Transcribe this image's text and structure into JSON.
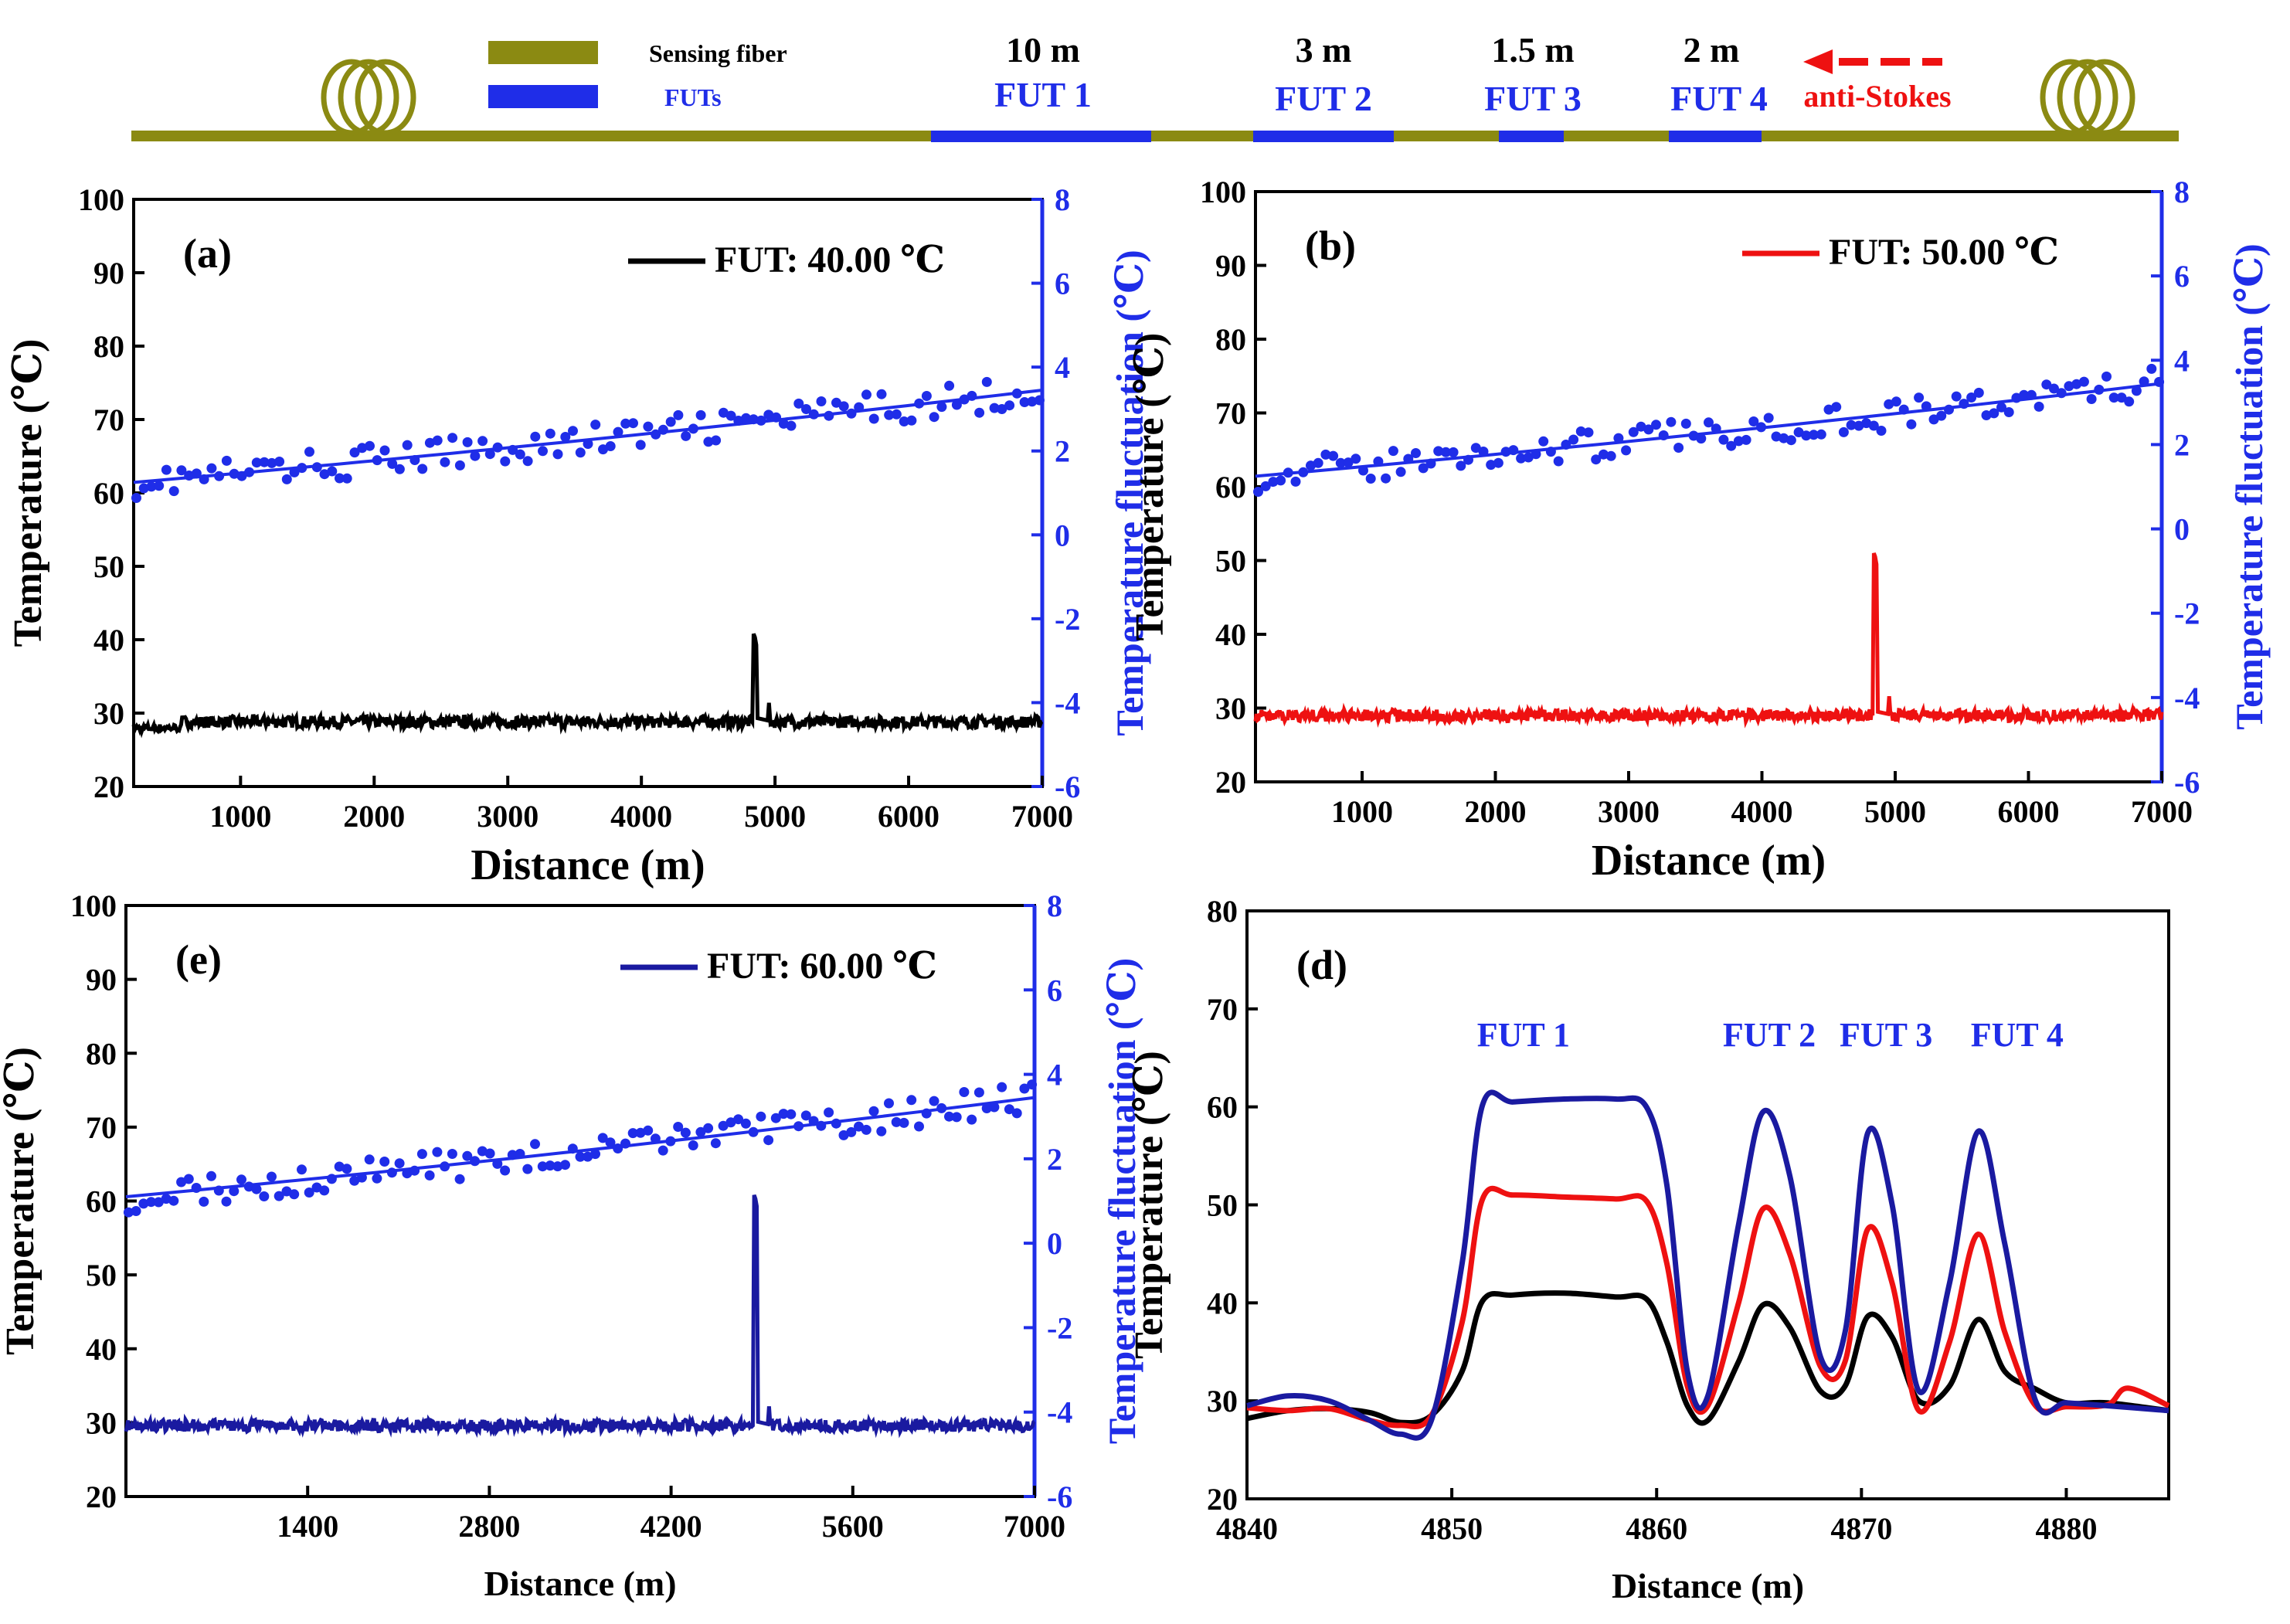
{
  "schematic": {
    "legend": [
      {
        "label": "Sensing fiber",
        "color": "#8b8a12"
      },
      {
        "label": "FUTs",
        "color": "#1f2de8"
      }
    ],
    "segments": [
      {
        "length": "10 m",
        "name": "FUT 1"
      },
      {
        "length": "3 m",
        "name": "FUT 2"
      },
      {
        "length": "1.5 m",
        "name": "FUT 3"
      },
      {
        "length": "2 m",
        "name": "FUT 4"
      }
    ],
    "direction_label": "anti-Stokes",
    "colors": {
      "fiber": "#8b8a12",
      "fut": "#1f2de8",
      "arrow": "#ee1111"
    }
  },
  "chart_data": [
    {
      "id": "a",
      "type": "line",
      "panel_label": "(a)",
      "legend": "FUT: 40.00 ℃",
      "trace_color": "#000000",
      "xlabel": "Distance (m)",
      "ylabel": "Temperature (℃)",
      "y2label": "Temperature fluctuation (℃)",
      "xlim": [
        200,
        7000
      ],
      "xticks": [
        1000,
        2000,
        3000,
        4000,
        5000,
        6000,
        7000
      ],
      "ylim": [
        20,
        100
      ],
      "yticks": [
        20,
        30,
        40,
        50,
        60,
        70,
        80,
        90,
        100
      ],
      "y2lim": [
        -6,
        8
      ],
      "y2ticks": [
        -6,
        -4,
        -2,
        0,
        2,
        4,
        6,
        8
      ],
      "baseline": 28.8,
      "peak": {
        "x": 4855,
        "y": 40.8
      },
      "fluctuation_fit": {
        "x": [
          200,
          7000
        ],
        "y": [
          1.25,
          3.45
        ]
      }
    },
    {
      "id": "b",
      "type": "line",
      "panel_label": "(b)",
      "legend": "FUT: 50.00 ℃",
      "trace_color": "#ee1111",
      "xlabel": "Distance (m)",
      "ylabel": "Temperature (℃)",
      "y2label": "Temperature fluctuation (℃)",
      "xlim": [
        200,
        7000
      ],
      "xticks": [
        1000,
        2000,
        3000,
        4000,
        5000,
        6000,
        7000
      ],
      "ylim": [
        20,
        100
      ],
      "yticks": [
        20,
        30,
        40,
        50,
        60,
        70,
        80,
        90,
        100
      ],
      "y2lim": [
        -6,
        8
      ],
      "y2ticks": [
        -6,
        -4,
        -2,
        0,
        2,
        4,
        6,
        8
      ],
      "baseline": 29.0,
      "peak": {
        "x": 4855,
        "y": 51.0
      },
      "fluctuation_fit": {
        "x": [
          200,
          7000
        ],
        "y": [
          1.25,
          3.45
        ]
      }
    },
    {
      "id": "e",
      "type": "line",
      "panel_label": "(e)",
      "legend": "FUT: 60.00 ℃",
      "trace_color": "#1a1aa0",
      "xlabel": "Distance (m)",
      "ylabel": "Temperature (℃)",
      "y2label": "Temperature fluctuation (℃)",
      "xlim": [
        0,
        7000
      ],
      "xticks": [
        1400,
        2800,
        4200,
        5600,
        7000
      ],
      "ylim": [
        20,
        100
      ],
      "yticks": [
        20,
        30,
        40,
        50,
        60,
        70,
        80,
        90,
        100
      ],
      "y2lim": [
        -6,
        8
      ],
      "y2ticks": [
        -6,
        -4,
        -2,
        0,
        2,
        4,
        6,
        8
      ],
      "baseline": 29.6,
      "peak": {
        "x": 4855,
        "y": 60.8
      },
      "fluctuation_fit": {
        "x": [
          0,
          7000
        ],
        "y": [
          1.1,
          3.45
        ]
      }
    },
    {
      "id": "d",
      "type": "line",
      "panel_label": "(d)",
      "xlabel": "Distance (m)",
      "ylabel": "Temperature (℃)",
      "xlim": [
        4840,
        4885
      ],
      "xticks": [
        4840,
        4850,
        4860,
        4870,
        4880
      ],
      "ylim": [
        20,
        80
      ],
      "yticks": [
        20,
        30,
        40,
        50,
        60,
        70,
        80
      ],
      "annotations": [
        "FUT 1",
        "FUT 2",
        "FUT 3",
        "FUT 4"
      ],
      "series": [
        {
          "color": "#000000",
          "x": [
            4840,
            4842,
            4844,
            4846,
            4847.5,
            4849,
            4850.5,
            4851.5,
            4853,
            4855.5,
            4858,
            4859.5,
            4860.5,
            4861.5,
            4862.5,
            4864,
            4865.2,
            4866.5,
            4868,
            4869.2,
            4870.3,
            4871.5,
            4872.8,
            4874.3,
            4875.7,
            4877,
            4878.5,
            4880,
            4882,
            4885
          ],
          "y": [
            28.2,
            29.0,
            29.2,
            28.8,
            27.8,
            28.5,
            33.0,
            40.2,
            40.8,
            41.0,
            40.6,
            40.4,
            36.0,
            29.5,
            28.0,
            34.0,
            39.8,
            37.5,
            31.0,
            31.5,
            38.6,
            36.5,
            30.0,
            31.5,
            38.3,
            33.0,
            31.2,
            29.8,
            29.8,
            29.0
          ]
        },
        {
          "color": "#ee1111",
          "x": [
            4840,
            4842,
            4844,
            4846,
            4847.5,
            4849,
            4850.5,
            4851.5,
            4853,
            4855.5,
            4858,
            4859.5,
            4860.5,
            4861.5,
            4862.5,
            4864,
            4865.2,
            4866.5,
            4868,
            4869.2,
            4870.3,
            4871.5,
            4872.8,
            4874.3,
            4875.7,
            4877,
            4878.5,
            4880,
            4882,
            4883,
            4885
          ],
          "y": [
            29.3,
            29.0,
            29.2,
            28.0,
            27.5,
            28.5,
            38.0,
            50.6,
            51.0,
            50.8,
            50.6,
            50.4,
            44.0,
            31.5,
            29.5,
            40.0,
            49.6,
            45.0,
            33.5,
            34.0,
            47.5,
            42.0,
            29.0,
            36.0,
            47.0,
            37.0,
            29.5,
            29.4,
            29.6,
            31.3,
            29.5
          ]
        },
        {
          "color": "#1a1aa0",
          "x": [
            4840,
            4842,
            4844,
            4846,
            4847.5,
            4849,
            4850.5,
            4851.5,
            4853,
            4855.5,
            4858,
            4859.5,
            4860.5,
            4861.5,
            4862.5,
            4864,
            4865.2,
            4866.5,
            4868,
            4869.2,
            4870.3,
            4871.5,
            4872.8,
            4874.3,
            4875.7,
            4877,
            4878.5,
            4880,
            4882,
            4885
          ],
          "y": [
            29.5,
            30.5,
            30.0,
            28.0,
            26.6,
            28.0,
            44.0,
            60.2,
            60.5,
            60.8,
            60.8,
            60.0,
            52.0,
            33.0,
            30.5,
            48.0,
            59.5,
            53.0,
            34.5,
            37.0,
            57.3,
            50.0,
            31.0,
            42.0,
            57.5,
            46.0,
            30.0,
            29.8,
            29.5,
            29.0
          ]
        }
      ]
    }
  ]
}
